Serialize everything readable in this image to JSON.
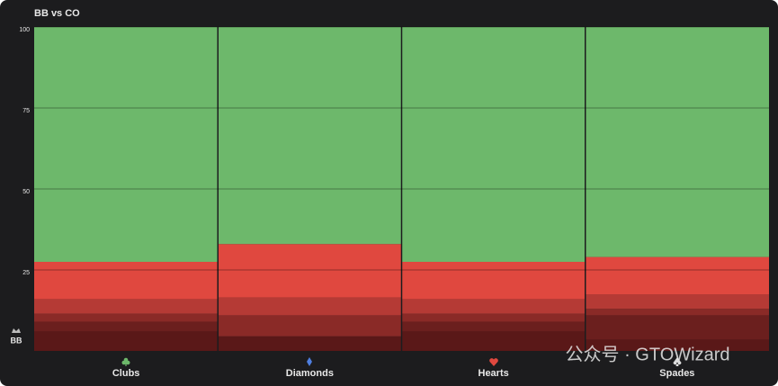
{
  "chart_data": {
    "type": "stacked_bar",
    "title": "BB vs CO",
    "player_label": "BB",
    "categories": [
      "Clubs",
      "Diamonds",
      "Hearts",
      "Spades"
    ],
    "series": [
      {
        "color": "#5a1818",
        "values": [
          6,
          4.5,
          6,
          3.5
        ]
      },
      {
        "color": "#6b1f1e",
        "values": [
          3,
          0,
          3,
          7.5
        ]
      },
      {
        "color": "#8a2a27",
        "values": [
          2.5,
          6.5,
          2.5,
          2
        ]
      },
      {
        "color": "#b53a35",
        "values": [
          4.5,
          5.5,
          4.5,
          4.5
        ]
      },
      {
        "color": "#e0483f",
        "values": [
          11.5,
          16.5,
          11.5,
          11.5
        ]
      },
      {
        "color": "#6db86b",
        "values": [
          72.5,
          67,
          72.5,
          71
        ]
      }
    ],
    "ylim": [
      0,
      100
    ],
    "yticks": [
      25,
      50,
      75,
      100
    ],
    "grid": true,
    "watermark": "公众号 · GTOWizard"
  }
}
